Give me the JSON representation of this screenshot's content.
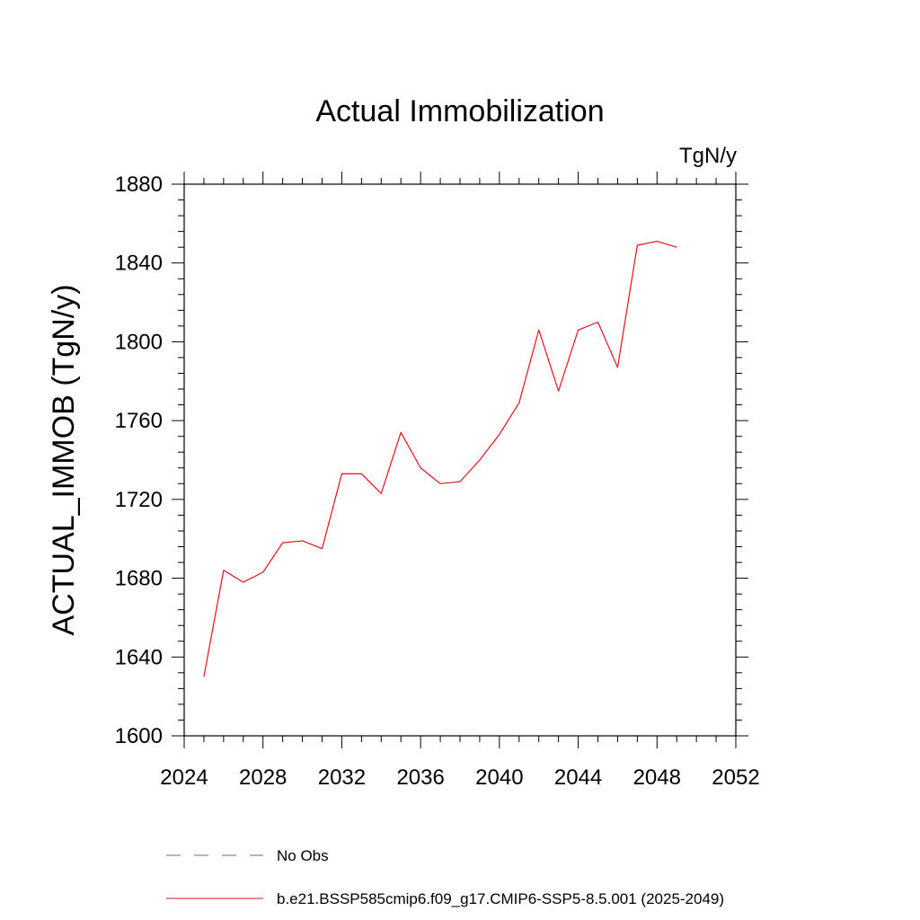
{
  "chart_data": {
    "type": "line",
    "title": "Actual Immobilization",
    "units": "TgN/y",
    "ylabel": "ACTUAL_IMMOB  (TgN/y)",
    "xlabel": "",
    "xlim": [
      2024,
      2052
    ],
    "ylim": [
      1600,
      1880
    ],
    "xticks": [
      2024,
      2028,
      2032,
      2036,
      2040,
      2044,
      2048,
      2052
    ],
    "yticks": [
      1600,
      1640,
      1680,
      1720,
      1760,
      1800,
      1840,
      1880
    ],
    "grid": false,
    "legend_position": "bottom",
    "legend": [
      {
        "name": "No Obs",
        "color": "#6b5fb5",
        "style": "dashed"
      },
      {
        "name": "b.e21.BSSP585cmip6.f09_g17.CMIP6-SSP5-8.5.001 (2025-2049)",
        "color": "#e8101b",
        "style": "solid"
      }
    ],
    "series": [
      {
        "name": "b.e21.BSSP585cmip6.f09_g17.CMIP6-SSP5-8.5.001 (2025-2049)",
        "color": "#e8101b",
        "x": [
          2025,
          2026,
          2027,
          2028,
          2029,
          2030,
          2031,
          2032,
          2033,
          2034,
          2035,
          2036,
          2037,
          2038,
          2039,
          2040,
          2041,
          2042,
          2043,
          2044,
          2045,
          2046,
          2047,
          2048,
          2049
        ],
        "y": [
          1630,
          1684,
          1678,
          1683,
          1698,
          1699,
          1695,
          1733,
          1733,
          1723,
          1754,
          1736,
          1728,
          1729,
          1740,
          1753,
          1769,
          1806,
          1775,
          1806,
          1810,
          1787,
          1849,
          1851,
          1848
        ]
      }
    ]
  }
}
